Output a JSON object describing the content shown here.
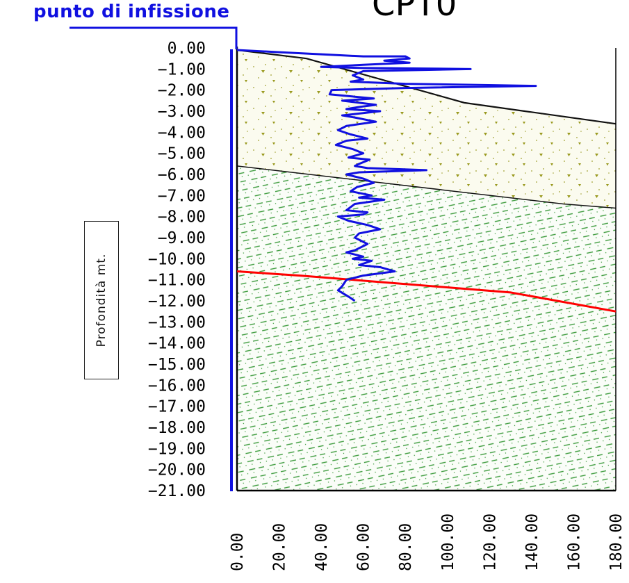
{
  "header": {
    "label": "punto di infissione",
    "title": "CPT0"
  },
  "chart_data": {
    "type": "line",
    "ylabel": "Profondità mt.",
    "ylim": [
      -21,
      0
    ],
    "xlim": [
      0,
      180
    ],
    "y_ticks": [
      "0.00",
      "−1.00",
      "−2.00",
      "−3.00",
      "−4.00",
      "−5.00",
      "−6.00",
      "−7.00",
      "−8.00",
      "−9.00",
      "−10.00",
      "−11.00",
      "−12.00",
      "−13.00",
      "−14.00",
      "−15.00",
      "−16.00",
      "−17.00",
      "−18.00",
      "−19.00",
      "−20.00",
      "−21.00"
    ],
    "x_ticks": [
      "0.00",
      "20.00",
      "40.00",
      "60.00",
      "80.00",
      "100.00",
      "120.00",
      "140.00",
      "160.00",
      "180.00"
    ],
    "series": [
      {
        "color": "#1010e0",
        "points": [
          [
            0,
            0.1
          ],
          [
            20,
            0.2
          ],
          [
            40,
            0.3
          ],
          [
            60,
            0.4
          ],
          [
            80,
            0.4
          ],
          [
            82,
            0.5
          ],
          [
            70,
            0.6
          ],
          [
            82,
            0.7
          ],
          [
            60,
            0.8
          ],
          [
            40,
            0.9
          ],
          [
            60,
            0.95
          ],
          [
            111,
            1.0
          ],
          [
            60,
            1.1
          ],
          [
            55,
            1.3
          ],
          [
            60,
            1.5
          ],
          [
            54,
            1.6
          ],
          [
            80,
            1.7
          ],
          [
            142,
            1.8
          ],
          [
            80,
            1.9
          ],
          [
            45,
            2.0
          ],
          [
            44,
            2.2
          ],
          [
            65,
            2.4
          ],
          [
            50,
            2.5
          ],
          [
            66,
            2.7
          ],
          [
            58,
            2.8
          ],
          [
            52,
            2.9
          ],
          [
            68,
            3.0
          ],
          [
            50,
            3.2
          ],
          [
            56,
            3.3
          ],
          [
            66,
            3.5
          ],
          [
            52,
            3.7
          ],
          [
            48,
            3.9
          ],
          [
            54,
            4.1
          ],
          [
            62,
            4.3
          ],
          [
            52,
            4.4
          ],
          [
            47,
            4.6
          ],
          [
            55,
            4.8
          ],
          [
            60,
            5.0
          ],
          [
            53,
            5.2
          ],
          [
            63,
            5.3
          ],
          [
            58,
            5.5
          ],
          [
            56,
            5.6
          ],
          [
            62,
            5.7
          ],
          [
            90,
            5.8
          ],
          [
            58,
            5.9
          ],
          [
            52,
            6.0
          ],
          [
            60,
            6.2
          ],
          [
            65,
            6.4
          ],
          [
            57,
            6.6
          ],
          [
            54,
            6.8
          ],
          [
            64,
            7.0
          ],
          [
            58,
            7.1
          ],
          [
            70,
            7.2
          ],
          [
            56,
            7.4
          ],
          [
            52,
            7.7
          ],
          [
            62,
            7.8
          ],
          [
            60,
            7.9
          ],
          [
            48,
            8.0
          ],
          [
            53,
            8.2
          ],
          [
            62,
            8.4
          ],
          [
            68,
            8.6
          ],
          [
            58,
            8.8
          ],
          [
            56,
            9.0
          ],
          [
            62,
            9.3
          ],
          [
            56,
            9.6
          ],
          [
            52,
            9.7
          ],
          [
            60,
            9.9
          ],
          [
            55,
            10.0
          ],
          [
            64,
            10.1
          ],
          [
            58,
            10.3
          ],
          [
            68,
            10.4
          ],
          [
            75,
            10.6
          ],
          [
            60,
            10.8
          ],
          [
            52,
            11.0
          ],
          [
            50,
            11.3
          ],
          [
            48,
            11.5
          ],
          [
            53,
            11.8
          ],
          [
            56,
            12.0
          ]
        ]
      }
    ],
    "layers": [
      {
        "name": "",
        "pattern": "sand",
        "color": "#8b8b18",
        "top": [
          [
            0,
            0.1
          ],
          [
            33,
            0.5
          ],
          [
            108,
            2.6
          ],
          [
            180,
            3.6
          ]
        ],
        "bottom": [
          [
            0,
            5.6
          ],
          [
            155,
            7.4
          ],
          [
            180,
            7.6
          ]
        ]
      },
      {
        "name": "",
        "pattern": "silt",
        "color": "#2e8b2e",
        "top": [
          [
            0,
            5.6
          ],
          [
            155,
            7.4
          ],
          [
            180,
            7.6
          ]
        ],
        "bottom": [
          [
            0,
            21
          ],
          [
            180,
            21
          ]
        ]
      }
    ],
    "water_table": {
      "color": "#ff0000",
      "points": [
        [
          0,
          10.6
        ],
        [
          30,
          10.8
        ],
        [
          130,
          11.6
        ],
        [
          180,
          12.5
        ]
      ]
    },
    "grid": false
  }
}
